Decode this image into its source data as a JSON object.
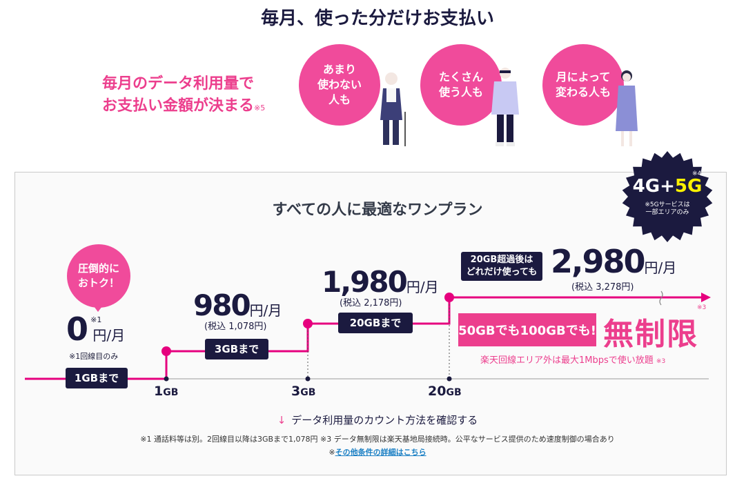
{
  "header": {
    "title": "毎月、使った分だけお支払い"
  },
  "intro": {
    "line1": "毎月のデータ利用量で",
    "line2": "お支払い金額が決まる",
    "note": "※5"
  },
  "bubbles": [
    {
      "label": "あまり\n使わない\n人も"
    },
    {
      "label": "たくさん\n使う人も"
    },
    {
      "label": "月によって\n変わる人も"
    }
  ],
  "plan": {
    "title": "すべての人に最適なワンプラン",
    "badge": {
      "main_prefix": "4G+",
      "main_5g": "5G",
      "note": "※4",
      "sub": "※5Gサービスは\n一部エリアのみ"
    },
    "toku": "圧倒的に\nおトク！",
    "tiers": [
      {
        "price": "0",
        "note": "※1",
        "unit": "円/月",
        "sub": "※1回線目のみ",
        "tag": "1GBまで"
      },
      {
        "price": "980",
        "unit": "円/月",
        "tax": "(税込 1,078円)",
        "tag": "3GBまで"
      },
      {
        "price": "1,980",
        "unit": "円/月",
        "tax": "(税込 2,178円)",
        "tag": "20GBまで"
      },
      {
        "price": "2,980",
        "unit": "円/月",
        "tax": "(税込 3,278円)",
        "tag": "20GB超過後は\nどれだけ使っても"
      }
    ],
    "axis": [
      {
        "num": "1",
        "unit": "GB"
      },
      {
        "num": "3",
        "unit": "GB"
      },
      {
        "num": "20",
        "unit": "GB"
      }
    ],
    "unlimited": {
      "box": "50GBでも100GBでも!",
      "big": "無制限",
      "note": "※3",
      "area": "楽天回線エリア外は最大1Mbpsで使い放題",
      "area_note": "※3"
    }
  },
  "footer": {
    "count_link": "データ利用量のカウント方法を確認する",
    "footnote": "※1 通話料等は別。2回線目以降は3GBまで1,078円 ※3 データ無制限は楽天基地局接続時。公平なサービス提供のため速度制御の場合あり",
    "other_prefix": "※",
    "other_link": "その他条件の詳細はこちら"
  },
  "colors": {
    "accent": "#ec3e8d",
    "navy": "#1b1a3f",
    "yellow": "#fff200"
  }
}
